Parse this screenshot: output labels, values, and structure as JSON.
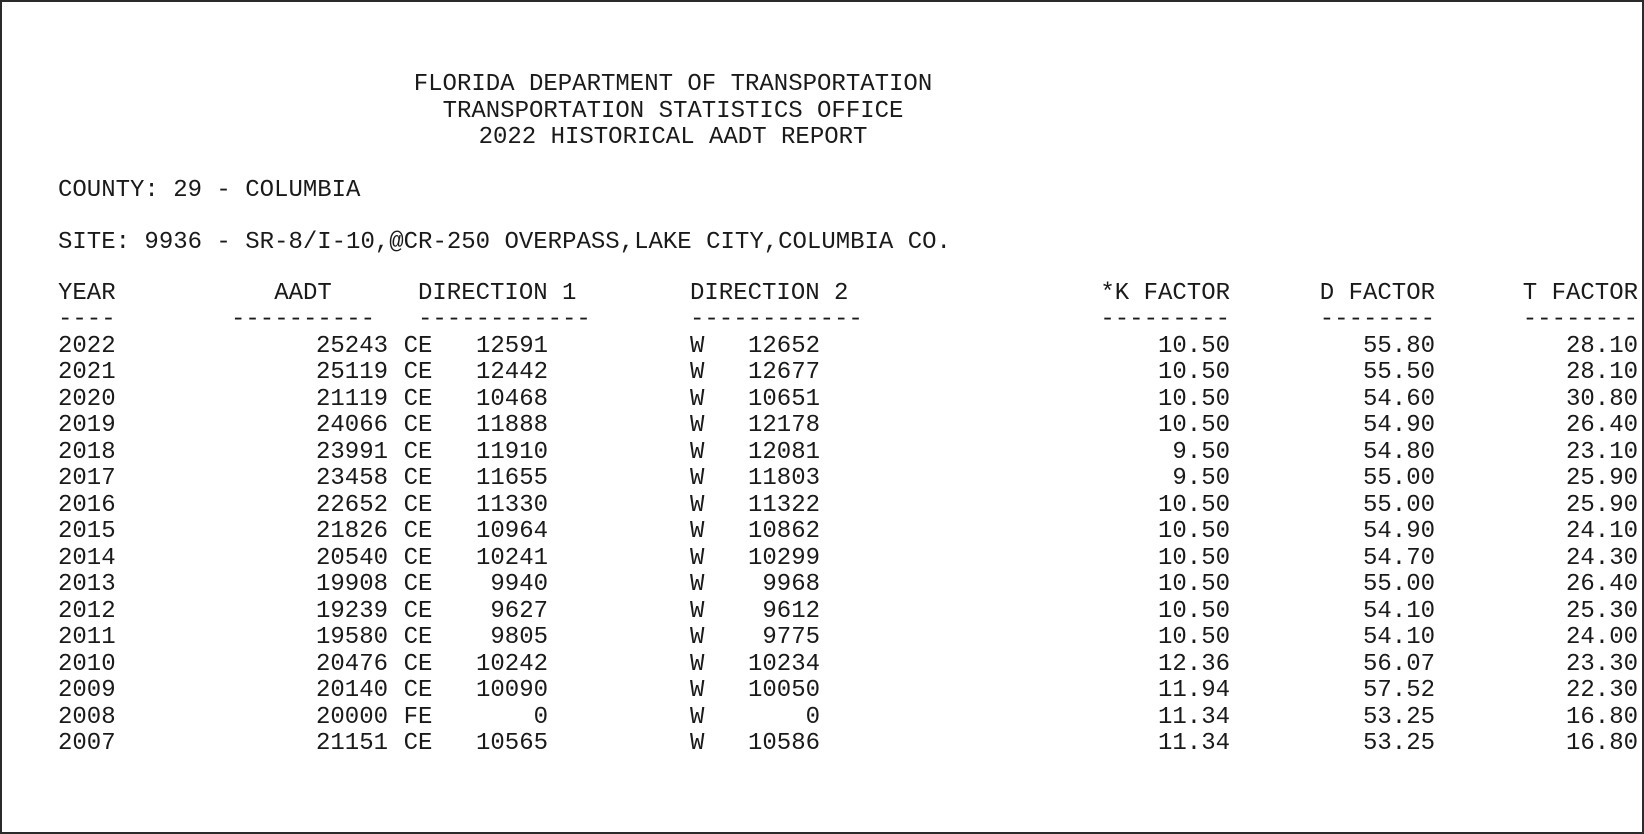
{
  "header": {
    "line1": "FLORIDA DEPARTMENT OF TRANSPORTATION",
    "line2": "TRANSPORTATION STATISTICS OFFICE",
    "line3": "2022 HISTORICAL AADT REPORT"
  },
  "county": "COUNTY: 29 - COLUMBIA",
  "site": "SITE: 9936 - SR-8/I-10,@CR-250 OVERPASS,LAKE CITY,COLUMBIA CO.",
  "columns": {
    "year": "YEAR",
    "aadt": "AADT",
    "direction1": "DIRECTION 1",
    "direction2": "DIRECTION 2",
    "k_factor": "*K FACTOR",
    "d_factor": "D FACTOR",
    "t_factor": "T FACTOR"
  },
  "dashes": {
    "year": "----",
    "aadt": "----------",
    "direction1": "------------",
    "direction2": "------------",
    "k_factor": "---------",
    "d_factor": "--------",
    "t_factor": "--------"
  },
  "rows": [
    {
      "year": "2022",
      "aadt": "25243",
      "flag": "C",
      "d1_dir": "E",
      "d1": "12591",
      "d2_dir": "W",
      "d2": "12652",
      "k": "10.50",
      "d": "55.80",
      "t": "28.10"
    },
    {
      "year": "2021",
      "aadt": "25119",
      "flag": "C",
      "d1_dir": "E",
      "d1": "12442",
      "d2_dir": "W",
      "d2": "12677",
      "k": "10.50",
      "d": "55.50",
      "t": "28.10"
    },
    {
      "year": "2020",
      "aadt": "21119",
      "flag": "C",
      "d1_dir": "E",
      "d1": "10468",
      "d2_dir": "W",
      "d2": "10651",
      "k": "10.50",
      "d": "54.60",
      "t": "30.80"
    },
    {
      "year": "2019",
      "aadt": "24066",
      "flag": "C",
      "d1_dir": "E",
      "d1": "11888",
      "d2_dir": "W",
      "d2": "12178",
      "k": "10.50",
      "d": "54.90",
      "t": "26.40"
    },
    {
      "year": "2018",
      "aadt": "23991",
      "flag": "C",
      "d1_dir": "E",
      "d1": "11910",
      "d2_dir": "W",
      "d2": "12081",
      "k": "9.50",
      "d": "54.80",
      "t": "23.10"
    },
    {
      "year": "2017",
      "aadt": "23458",
      "flag": "C",
      "d1_dir": "E",
      "d1": "11655",
      "d2_dir": "W",
      "d2": "11803",
      "k": "9.50",
      "d": "55.00",
      "t": "25.90"
    },
    {
      "year": "2016",
      "aadt": "22652",
      "flag": "C",
      "d1_dir": "E",
      "d1": "11330",
      "d2_dir": "W",
      "d2": "11322",
      "k": "10.50",
      "d": "55.00",
      "t": "25.90"
    },
    {
      "year": "2015",
      "aadt": "21826",
      "flag": "C",
      "d1_dir": "E",
      "d1": "10964",
      "d2_dir": "W",
      "d2": "10862",
      "k": "10.50",
      "d": "54.90",
      "t": "24.10"
    },
    {
      "year": "2014",
      "aadt": "20540",
      "flag": "C",
      "d1_dir": "E",
      "d1": "10241",
      "d2_dir": "W",
      "d2": "10299",
      "k": "10.50",
      "d": "54.70",
      "t": "24.30"
    },
    {
      "year": "2013",
      "aadt": "19908",
      "flag": "C",
      "d1_dir": "E",
      "d1": "9940",
      "d2_dir": "W",
      "d2": "9968",
      "k": "10.50",
      "d": "55.00",
      "t": "26.40"
    },
    {
      "year": "2012",
      "aadt": "19239",
      "flag": "C",
      "d1_dir": "E",
      "d1": "9627",
      "d2_dir": "W",
      "d2": "9612",
      "k": "10.50",
      "d": "54.10",
      "t": "25.30"
    },
    {
      "year": "2011",
      "aadt": "19580",
      "flag": "C",
      "d1_dir": "E",
      "d1": "9805",
      "d2_dir": "W",
      "d2": "9775",
      "k": "10.50",
      "d": "54.10",
      "t": "24.00"
    },
    {
      "year": "2010",
      "aadt": "20476",
      "flag": "C",
      "d1_dir": "E",
      "d1": "10242",
      "d2_dir": "W",
      "d2": "10234",
      "k": "12.36",
      "d": "56.07",
      "t": "23.30"
    },
    {
      "year": "2009",
      "aadt": "20140",
      "flag": "C",
      "d1_dir": "E",
      "d1": "10090",
      "d2_dir": "W",
      "d2": "10050",
      "k": "11.94",
      "d": "57.52",
      "t": "22.30"
    },
    {
      "year": "2008",
      "aadt": "20000",
      "flag": "F",
      "d1_dir": "E",
      "d1": "0",
      "d2_dir": "W",
      "d2": "0",
      "k": "11.34",
      "d": "53.25",
      "t": "16.80"
    },
    {
      "year": "2007",
      "aadt": "21151",
      "flag": "C",
      "d1_dir": "E",
      "d1": "10565",
      "d2_dir": "W",
      "d2": "10586",
      "k": "11.34",
      "d": "53.25",
      "t": "16.80"
    }
  ]
}
